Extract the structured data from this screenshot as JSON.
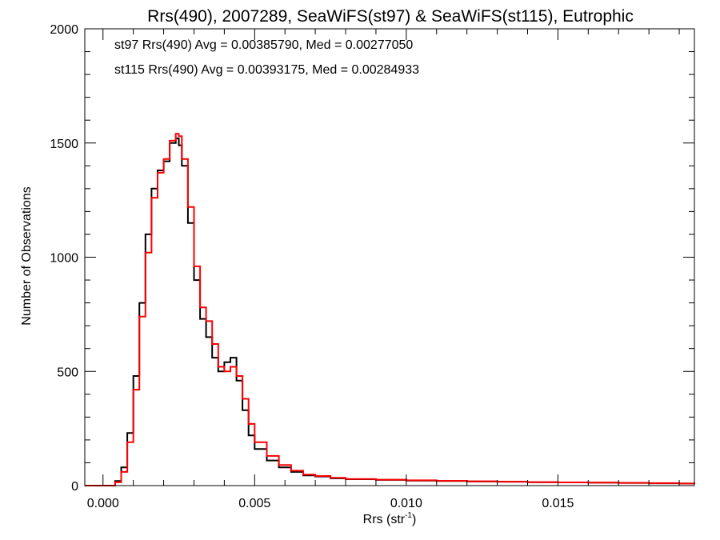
{
  "chart_data": {
    "type": "line",
    "title": "Rrs(490), 2007289, SeaWiFS(st97) & SeaWiFS(st115), Eutrophic",
    "xlabel": "Rrs (str",
    "xlabel_sup": "-1",
    "xlabel_close": ")",
    "ylabel": "Number of Observations",
    "xlim": [
      -0.0006,
      0.0195
    ],
    "ylim": [
      0,
      2000
    ],
    "x_ticks": [
      0.0,
      0.005,
      0.01,
      0.015
    ],
    "x_tick_labels": [
      "0.000",
      "0.005",
      "0.010",
      "0.015"
    ],
    "y_ticks": [
      0,
      500,
      1000,
      1500,
      2000
    ],
    "y_tick_labels": [
      "0",
      "500",
      "1000",
      "1500",
      "2000"
    ],
    "grid": false,
    "legend_placement": "top-left",
    "annotations": [
      {
        "text": "st97 Rrs(490) Avg = 0.00385790, Med = 0.00277050",
        "color": "#000000"
      },
      {
        "text": "st115 Rrs(490) Avg = 0.00393175, Med = 0.00284933",
        "color": "#ff0000"
      }
    ],
    "series": [
      {
        "color": "#000000",
        "x": [
          -0.0006,
          0.0,
          0.0004,
          0.0006,
          0.0008,
          0.001,
          0.0012,
          0.0014,
          0.0016,
          0.0018,
          0.002,
          0.0022,
          0.0024,
          0.0025,
          0.0026,
          0.0028,
          0.003,
          0.0032,
          0.0034,
          0.0036,
          0.0038,
          0.004,
          0.0042,
          0.0044,
          0.0046,
          0.0048,
          0.005,
          0.0054,
          0.0058,
          0.0062,
          0.0066,
          0.007,
          0.0075,
          0.008,
          0.009,
          0.01,
          0.011,
          0.012,
          0.013,
          0.014,
          0.015,
          0.016,
          0.017,
          0.018,
          0.019,
          0.0195
        ],
        "y": [
          0,
          0,
          20,
          80,
          230,
          480,
          800,
          1100,
          1300,
          1380,
          1420,
          1500,
          1520,
          1490,
          1400,
          1150,
          900,
          730,
          650,
          560,
          500,
          540,
          560,
          460,
          330,
          220,
          160,
          110,
          80,
          60,
          45,
          40,
          32,
          28,
          25,
          22,
          20,
          18,
          17,
          15,
          14,
          13,
          12,
          10,
          9,
          8
        ]
      },
      {
        "color": "#ff0000",
        "x": [
          -0.0006,
          0.0,
          0.0004,
          0.0006,
          0.0008,
          0.001,
          0.0012,
          0.0014,
          0.0016,
          0.0018,
          0.002,
          0.0022,
          0.0024,
          0.0025,
          0.0026,
          0.0028,
          0.003,
          0.0032,
          0.0034,
          0.0036,
          0.0038,
          0.004,
          0.0042,
          0.0044,
          0.0046,
          0.0048,
          0.005,
          0.0054,
          0.0058,
          0.0062,
          0.0066,
          0.007,
          0.0075,
          0.008,
          0.009,
          0.01,
          0.011,
          0.012,
          0.013,
          0.014,
          0.015,
          0.016,
          0.017,
          0.018,
          0.019,
          0.0195
        ],
        "y": [
          0,
          0,
          15,
          60,
          190,
          420,
          740,
          1020,
          1260,
          1370,
          1430,
          1510,
          1540,
          1530,
          1430,
          1220,
          960,
          780,
          720,
          620,
          520,
          500,
          520,
          480,
          380,
          270,
          190,
          130,
          90,
          65,
          48,
          42,
          34,
          29,
          26,
          23,
          21,
          19,
          17,
          15,
          14,
          13,
          12,
          11,
          9,
          8
        ]
      }
    ]
  }
}
